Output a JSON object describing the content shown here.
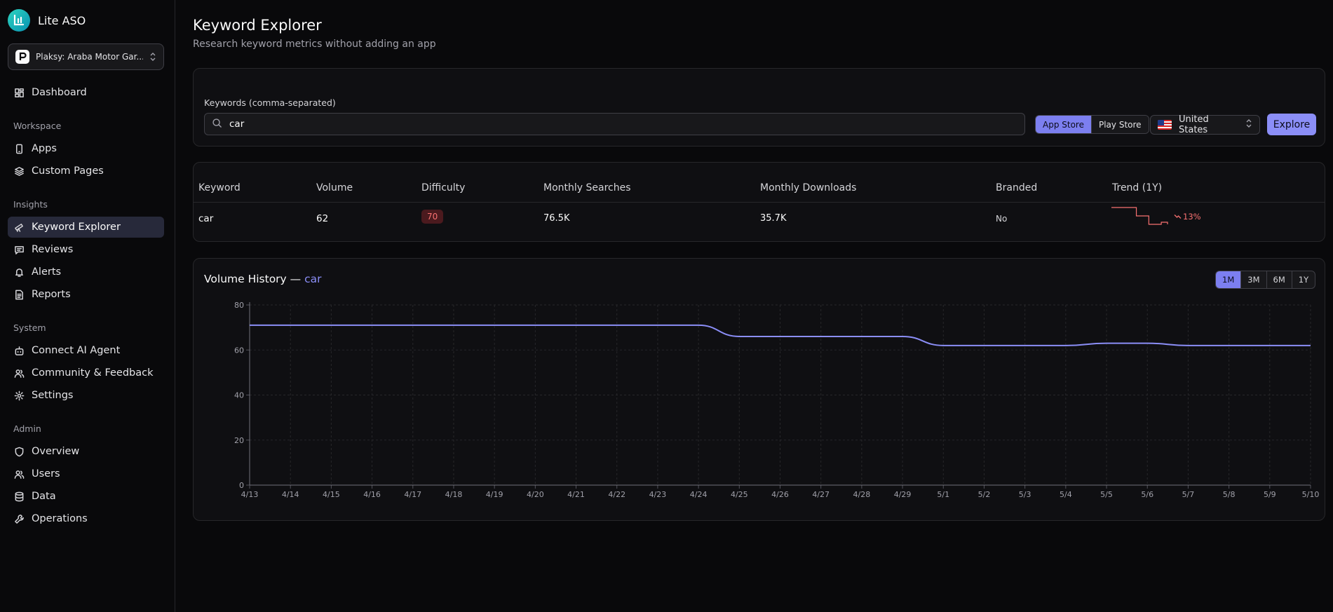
{
  "sidebar": {
    "brand": "Lite ASO",
    "app_selector": {
      "name": "Plaksy: Araba Motor Gar..."
    },
    "dashboard": "Dashboard",
    "sections": {
      "workspace": "Workspace",
      "insights": "Insights",
      "system": "System",
      "admin": "Admin"
    },
    "items": {
      "apps": "Apps",
      "custom_pages": "Custom Pages",
      "keyword_explorer": "Keyword Explorer",
      "reviews": "Reviews",
      "alerts": "Alerts",
      "reports": "Reports",
      "connect_ai_agent": "Connect AI Agent",
      "community_feedback": "Community & Feedback",
      "settings": "Settings",
      "overview": "Overview",
      "users": "Users",
      "data": "Data",
      "operations": "Operations"
    },
    "active_item": "keyword_explorer"
  },
  "header": {
    "title": "Keyword Explorer",
    "subtitle": "Research keyword metrics without adding an app"
  },
  "search": {
    "label": "Keywords (comma-separated)",
    "value": "car",
    "store_options": [
      "App Store",
      "Play Store"
    ],
    "selected_store": "App Store",
    "country": "United States",
    "explore_label": "Explore"
  },
  "results_table": {
    "columns": [
      "Keyword",
      "Volume",
      "Difficulty",
      "Monthly Searches",
      "Monthly Downloads",
      "Branded",
      "Trend (1Y)"
    ],
    "rows": [
      {
        "keyword": "car",
        "volume": "62",
        "difficulty": "70",
        "monthly_searches": "76.5K",
        "monthly_downloads": "35.7K",
        "branded": "No",
        "trend_change": "13%",
        "trend_direction": "down"
      }
    ]
  },
  "volume_history": {
    "title_prefix": "Volume History —",
    "keyword": "car",
    "ranges": [
      "1M",
      "3M",
      "6M",
      "1Y"
    ],
    "selected_range": "1M"
  },
  "colors": {
    "accent": "#8b8ef7",
    "negative": "#f87171",
    "background": "#09090b",
    "card": "#0f0f12"
  },
  "chart_data": {
    "type": "line",
    "x": [
      "4/13",
      "4/14",
      "4/15",
      "4/16",
      "4/17",
      "4/18",
      "4/19",
      "4/20",
      "4/21",
      "4/22",
      "4/23",
      "4/24",
      "4/25",
      "4/26",
      "4/27",
      "4/28",
      "4/29",
      "5/1",
      "5/2",
      "5/3",
      "5/4",
      "5/5",
      "5/6",
      "5/7",
      "5/8",
      "5/9",
      "5/10"
    ],
    "series": [
      {
        "values": [
          71,
          71,
          71,
          71,
          71,
          71,
          71,
          71,
          71,
          71,
          71,
          71,
          66,
          66,
          66,
          66,
          66,
          62,
          62,
          62,
          62,
          63,
          63,
          62,
          62,
          62,
          62
        ]
      }
    ],
    "ylim": [
      0,
      80
    ],
    "yticks": [
      0,
      20,
      40,
      60,
      80
    ],
    "grid": true,
    "title": "",
    "xlabel": "",
    "ylabel": ""
  },
  "trend_sparkline": [
    70,
    70,
    70,
    70,
    66,
    66,
    62,
    62,
    63,
    62
  ]
}
